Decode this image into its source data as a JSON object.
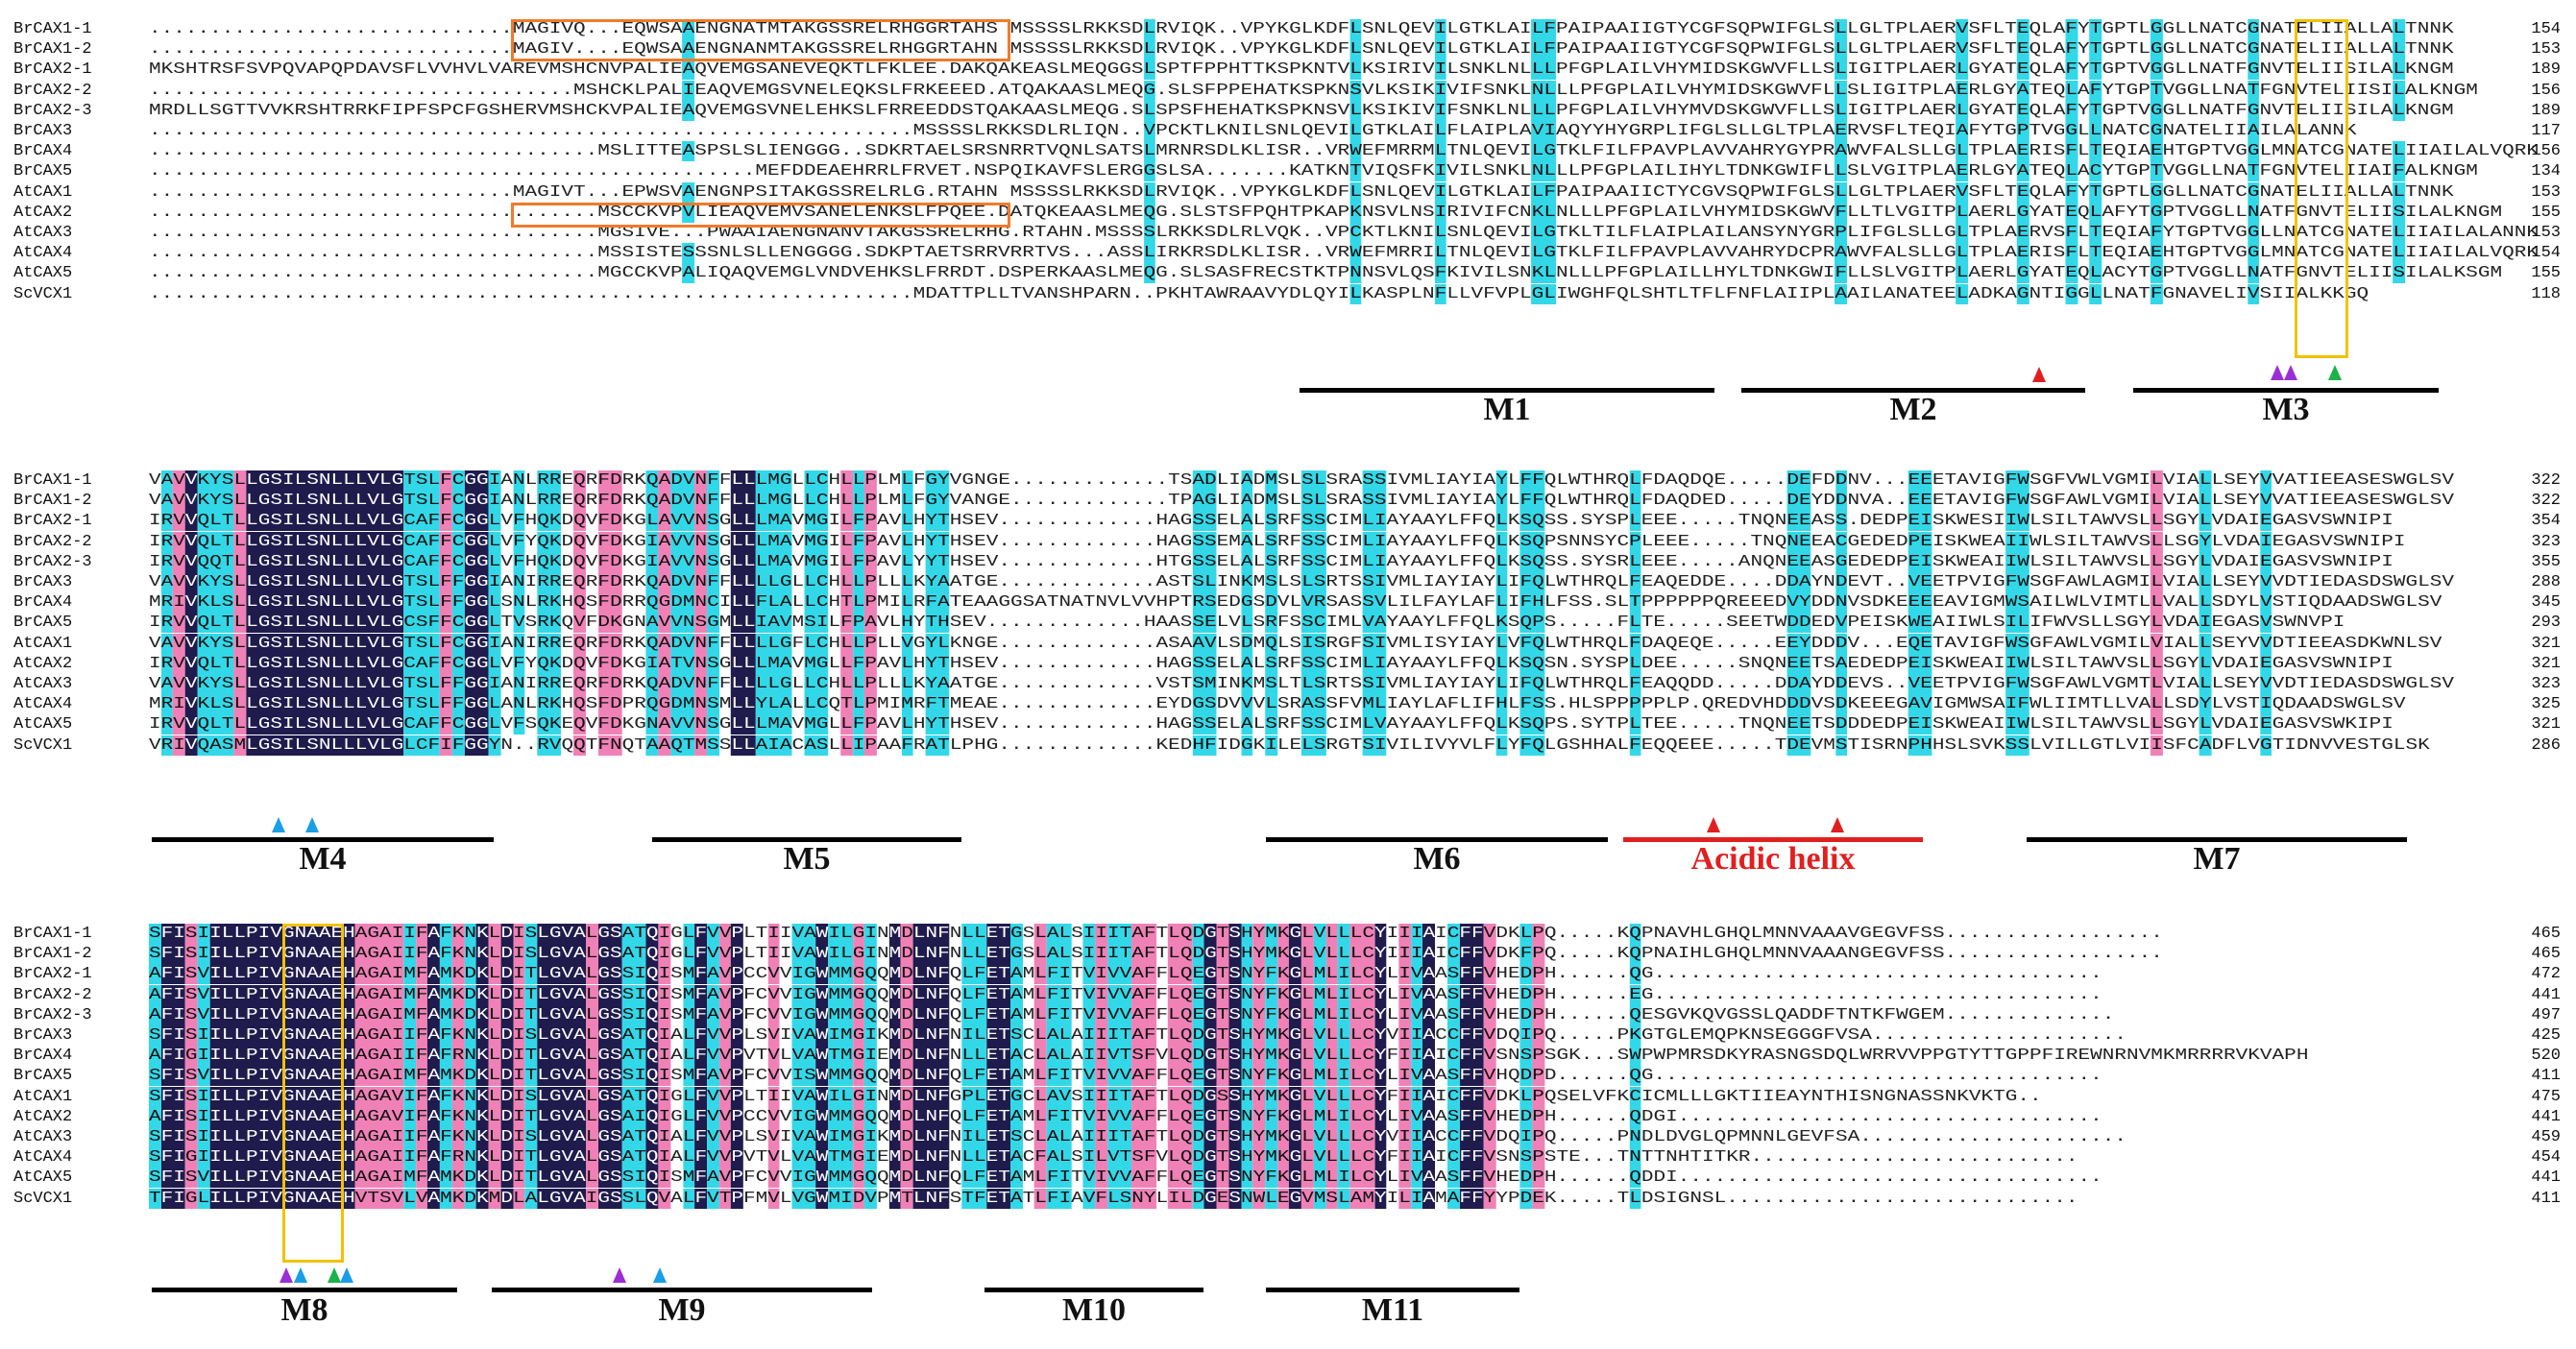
{
  "block1": {
    "rows": [
      {
        "name": "BrCAX1-1",
        "seq": "..............................MAGIVQ...EQWSAAENGNATMTAKGSSRELRHGGRTAHS MSSSSLRKKSDLRVIQK..VPYKGLKDFLSNLQEVILGTKLAILFPAIPAAIIGTYCGFSQPWIFGLSLLGLTPLAERVSFLTEQLAFYTGPTLGGLLNATCGNATELIIALLALTNNK",
        "end": "154"
      },
      {
        "name": "BrCAX1-2",
        "seq": "..............................MAGIV....EQWSAAENGNANMTAKGSSRELRHGGRTAHN MSSSSLRKKSDLRVIQK..VPYKGLKDFLSNLQEVILGTKLAILFPAIPAAIIGTYCGFSQPWIFGLSLLGLTPLAERVSFLTEQLAFYTGPTLGGLLNATCGNATELIIALLALTNNK",
        "end": "153"
      },
      {
        "name": "BrCAX2-1",
        "seq": "MKSHTRSFSVPQVAPQPDAVSFLVVHVLVAREVMSHCNVPALIEAQVEMGSANEVEQKTLFKLEE.DAKQAKEASLMEQGGSLSPTFPPHTTKSPKNTVLKSIRIVILSNKLNLLLPFGPLAILVHYMIDSKGWVFLLSLIGITPLAERLGYATEQLAFYTGPTVGGLLNATFGNVTELIISILALKNGM",
        "end": "189"
      },
      {
        "name": "BrCAX2-2",
        "seq": "...................................MSHCKLPALIEAQVEMGSVNELEQKSLFRKEEED.ATQAKAASLMEQG.SLSFPPEHATKSPKNSVLKSIKIVIFSNKLNLLLPFGPLAILVHYMIDSKGWVFLLSLIGITPLAERLGYATEQLAFYTGPTVGGLLNATFGNVTELIISILALKNGM",
        "end": "156"
      },
      {
        "name": "BrCAX2-3",
        "seq": "MRDLLSGTTVVKRSHTRRKFIPFSPCFGSHERVMSHCKVPALIEAQVEMGSVNELEHKSLFRREEDDSTQAKAASLMEQG.SLSPSFHEHATKSPKNSVLKSIKIVIFSNKLNLLLPFGPLAILVHYMVDSKGWVFLLSLIGITPLAERLGYATEQLAFYTGPTVGGLLNATFGNVTELIISILALKNGM",
        "end": "189"
      },
      {
        "name": "BrCAX3",
        "seq": "...............................................................MSSSSLRKKSDLRLIQN..VPCKTLKNILSNLQEVILGTKLAILFLAIPLAVIAQYYHYGRPLIFGLSLLGLTPLAERVSFLTEQIAFYTGPTVGGLLNATCGNATELIIAILALANNK",
        "end": "117"
      },
      {
        "name": "BrCAX4",
        "seq": ".....................................MSLITTEASPSLSLIENGGG..SDKRTAELSRSNRRTVQNLSATSLMRNRSDLKLISR..VRWEFMRRMLTNLQEVILGTKLFILFPAVPLAVVAHRYGYPRAWVFALSLLGLTPLAERISFLTEQIAEHTGPTVGGLMNATCGNATELIIAILALVQRK",
        "end": "156"
      },
      {
        "name": "BrCAX5",
        "seq": "..................................................MEFDDEAEHRRLFRVET.NSPQIKAVFSLERGGSLSA.......KATKNTVIQSFKIVILSNKLNLLLPFGPLAILIHYLTDNKGWIFLLSLVGITPLAERLGYATEQLACYTGPTVGGLLNATFGNVTELIIAIFALKNGM",
        "end": "134"
      },
      {
        "name": "AtCAX1",
        "seq": "..............................MAGIVT...EPWSVAENGNPSITAKGSSRELRLG.RTAHN MSSSSLRKKSDLRVIQK..VPYKGLKDFLSNLQEVILGTKLAILFPAIPAAIICTYCGVSQPWIFGLSLLGLTPLAERVSFLTEQLAFYTGPTLGGLLNATCGNATELIIALLALTNNK",
        "end": "153"
      },
      {
        "name": "AtCAX2",
        "seq": ".....................................MSCCKVPVLIEAQVEMVSANELENKSLFPQEE.DATQKEAASLMEQG.SLSTSFPQHTPKAPKNSVLNSIRIVIFCNKLNLLLPFGPLAILVHYMIDSKGWVFLLTLVGITPLAERLGYATEQLAFYTGPTVGGLLNATFGNVTELIISILALKNGM",
        "end": "155"
      },
      {
        "name": "AtCAX3",
        "seq": ".....................................MGSIVE...PWAAIAENGNANVTAKGSSRELRHG.RTAHN.MSSSSLRKKSDLRLVQK..VPCKTLKNILSNLQEVILGTKLTILFLAIPLAILANSYNYGRPLIFGLSLLGLTPLAERVSFLTEQIAFYTGPTVGGLLNATCGNATELIIAILALANNK",
        "end": "153"
      },
      {
        "name": "AtCAX4",
        "seq": ".....................................MSSISTESSSNLSLLENGGGG.SDKPTAETSRRVRRTVS...ASSLIRKRSDLKLISR..VRWEFMRRILTNLQEVILGTKLFILFPAVPLAVVAHRYDCPRAWVFALSLLGLTPLAERISFLTEQIAEHTGPTVGGLMNATCGNATELIIAILALVQRK",
        "end": "154"
      },
      {
        "name": "AtCAX5",
        "seq": ".....................................MGCCKVPALIQAQVEMGLVNDVEHKSLFRRDT.DSPERKAASLMEQG.SLSASFRECSTKTPNNSVLQSFKIVILSNKLNLLLPFGPLAILLHYLTDNKGWIFLLSLVGITPLAERLGYATEQLACYTGPTVGGLLNATFGNVTELIISILALKSGM",
        "end": "155"
      },
      {
        "name": "ScVCX1",
        "seq": "...............................................................MDATTPLLTVANSHPARN..PKHTAWRAAVYDLQYILKASPLNFLLVFVPLGLIWGHFQLSHTLTFLFNFLAIIPLAAILANATEELADKAGNTIGGLLNATFGNAVELIVSIIALKKGQ",
        "end": "118"
      }
    ]
  },
  "block2": {
    "rows": [
      {
        "name": "BrCAX1-1",
        "seq": "VAVVKYSLLGSILSNLLLVLGTSLFCGGIANLRREQRFDRKQADVNFFLLLMGLLCHLLPLMLFGYVGNGE.............TSADLIADMSLSLSRASSIVMLIAYIAYLFFQLWTHRQLFDAQDQE.....DEFDDNV...EEETAVIGFWSGFVWLVGMILVIALLSEYVVATIEEASESWGLSV",
        "end": "322"
      },
      {
        "name": "BrCAX1-2",
        "seq": "VAVVKYSLLGSILSNLLLVLGTSLFCGGIANLRREQRFDRKQADVNFFLLLMGLLCHLLPLMLFGYVANGE.............TPAGLIADMSLSLSRASSIVMLIAYIAYLFFQLWTHRQLFDAQDED.....DEYDDNVA..EEETAVIGFWSGFAWLVGMILVIALLSEYVVATIEEASESWGLSV",
        "end": "322"
      },
      {
        "name": "BrCAX2-1",
        "seq": "IRVVQLTLLGSILSNLLLVLGCAFFCGGLVFHQKDQVFDKGLAVVNSGLLLMAVMGILFPAVLHYTHSEV.............HAGSSELALSRFSSCIMLIAYAAYLFFQLKSQSS.SYSPLEEE.....TNQNEEASS.DEDPEISKWESIIWLSILTAWVSLLSGYLVDAIEGASVSWNIPI",
        "end": "354"
      },
      {
        "name": "BrCAX2-2",
        "seq": "IRVVQLTLLGSILSNLLLVLGCAFFCGGLVFYQKDQVFDKGIAVVNSGLLLMAVMGILFPAVLHYTHSEV.............HAGSSEMALSRFSSCIMLIAYAAYLFFQLKSQPSNNSYCPLEEE.....TNQNEEACGEDEDPEISKWEAIIWLSILTAWVSLLSGYLVDAIEGASVSWNIPI",
        "end": "323"
      },
      {
        "name": "BrCAX2-3",
        "seq": "IRVVQQTLLGSILSNLLLVLGCAFFCGGLVFHQKDQVFDKGIAVVNSGLLLMAVMGILFPAVLYYTHSEV.............HTGSSELALSRFSSCIMLIAYAAYLFFQLKSQSS.SYSRLEEE.....ANQNEEASGEDEDPEISKWEAIIWLSILTAWVSLLSGYLVDAIEGASVSWNIPI",
        "end": "355"
      },
      {
        "name": "BrCAX3",
        "seq": "VAVVKYSLLGSILSNLLLVLGTSLFFGGIANIRREQRFDRKQADVNFFLLLLGLLCHLLPLLLKYAATGE.............ASTSLINKMSLSLSRTSSIVMLIAYIAYLIFQLWTHRQLFEAQEDDE....DDAYNDEVT..VEETPVIGFWSGFAWLAGMILVIALLSEYVVDTIEDASDSWGLSV",
        "end": "288"
      },
      {
        "name": "BrCAX4",
        "seq": "MRIVKLSLLGSILSNLLLVLGTSLFFGGLSNLRKHQSFDRRQGDMNCILLFLALLCHTLPMILRFATEAAGGSATNATNVLVVHPTRSEDGSDVLVRSASSVLILFAYLAFLIFHLFSS.SLTPPPPPPQREEEDVYDDNVSDKEEEEAVIGMWSAILWLVIMTLLVALLSDYLVSTIQDAADSWGLSV",
        "end": "345"
      },
      {
        "name": "BrCAX5",
        "seq": "IRVVQLTLLGSILSNLLLVLGCSFFCGGLTVSRKQVFDKGNAVVNSGMLLIAVMSILFPAVLHYTHSEV.............HAASSELVLSRFSSCIMLVAYAAYLFFQLKSQPS.....FLTE.....SEETWDDEDVPEISKWEAIIWLSILIFWVSLLSGYLVDAIEGASVSWNVPI",
        "end": "293"
      },
      {
        "name": "AtCAX1",
        "seq": "VAVVKYSLLGSILSNLLLVLGTSLFCGGIANIRREQRFDRKQADVNFFLLLLGFLCHLLPLLVGYLKNGE.............ASAAVLSDMQLSISRGFSIVMLISYIAYLVFQLWTHRQLFDAQEQE.....EEYDDDV...EQETAVIGFWSGFAWLVGMILVIALLSEYVVDTIEEASDKWNLSV",
        "end": "321"
      },
      {
        "name": "AtCAX2",
        "seq": "IRVVQLTLLGSILSNLLLVLGCAFFCGGLVFYQKDQVFDKGIATVNSGLLLMAVMGLLFPAVLHYTHSEV.............HAGSSELALSRFSSCIMLIAYAAYLFFQLKSQSN.SYSPLDEE.....SNQNEETSAEDEDPEISKWEAIIWLSILTAWVSLLSGYLVDAIEGASVSWNIPI",
        "end": "321"
      },
      {
        "name": "AtCAX3",
        "seq": "VAVVKYSLLGSILSNLLLVLGTSLFFGGIANIRREQRFDRKQADVNFFLLLLGLLCHLLPLLLKYAATGE.............VSTSMINKMSLTLSRTSSIVMLIAYIAYLIFQLWTHRQLFEAQQDD.....DDAYDDEVS..VEETPVIGFWSGFAWLVGMTLVIALLSEYVVDTIEDASDSWGLSV",
        "end": "323"
      },
      {
        "name": "AtCAX4",
        "seq": "MRIVKLSLLGSILSNLLLVLGTSLFFGGLANLRKHQSFDPRQGDMNSMLLYLALLCQTLPMIMRFTMEAE.............EYDGSDVVVLSRASSFVMLIAYLAFLIFHLFSS.HLSPPPPPLP.QREDVHDDDVSDKEEEGAVIGMWSAIFWLIIMTLLVALLSDYLVSTIQDAADSWGLSV",
        "end": "325"
      },
      {
        "name": "AtCAX5",
        "seq": "IRVVQLTLLGSILSNLLLVLGCAFFCGGLVFSQKEQVFDKGNAVVNSGLLLMAVMGLLFPAVLHYTHSEV.............HAGSSELALSRFSSCIMLVAYAAYLFFQLKSQPS.SYTPLTEE.....TNQNEETSDDDEDPEISKWEAIIWLSILTAWVSLLSGYLVDAIEGASVSWKIPI",
        "end": "321"
      },
      {
        "name": "ScVCX1",
        "seq": "VRIVQASMLGSILSNLLLVLGLCFIFGGYN..RVQQTFNQTAAQTMSSLLAIACASLLIPAAFRATLPHG.............KEDHFIDGKILELSRGTSIVILIVYVLFLYFQLGSHHALFEQQEEE.....TDEVMSTISRNPHHSLSVKSSLVILLGTLVIISFCADFLVGTIDNVVESTGLSK",
        "end": "286"
      }
    ]
  },
  "block3": {
    "rows": [
      {
        "name": "BrCAX1-1",
        "seq": "SFISIILLPIVGNAAEHAGAIIFAFKNKLDISLGVALGSATQIGLFVVPLTIIVAWILGINMDLNFNLLETGSLALSIIITAFTLQDGTSHYMKGLVLLLCYIIIAICFFVDKLPQ.....KQPNAVHLGHQLMNNVAAAVGEGVFSS..................",
        "end": "465"
      },
      {
        "name": "BrCAX1-2",
        "seq": "SFISIILLPIVGNAAEHAGAIIFAFKNKLDISLGVALGSATQIGLFVVPLTIIVAWILGINMDLNFNLLETGSLALSIIITAFTLQDGTSHYMKGLVLLLCYIIIAICFFVDKFPQ.....KQPNAIHLGHQLMNNVAAANGEGVFSS..................",
        "end": "465"
      },
      {
        "name": "BrCAX2-1",
        "seq": "AFISVILLPIVGNAAEHAGAIMFAMKDKLDITLGVALGSSIQISMFAVPCCVVIGWMMGQQMDLNFQLFETAMLFITVIVVAFFLQEGTSNYFKGLMLILCYLIVAASFFVHEDPH......QG.....................................",
        "end": "472"
      },
      {
        "name": "BrCAX2-2",
        "seq": "AFISVILLPIVGNAAEHAGAIMFAMKDKLDITLGVALGSSIQISMFAVPFCVVIGWMMGQQMDLNFQLFETAMLFITVIVVAFFLQEGTSNYFKGLMLILCYLIVAASFFVHEDPH......EG.....................................",
        "end": "441"
      },
      {
        "name": "BrCAX2-3",
        "seq": "AFISVILLPIVGNAAEHAGAIMFAMKDKLDITLGVALGSSIQISMFAVPFCVVIGWMMGQQMDLNFQLFETAMLFITVIVVAFFLQEGTSNYFKGLMLILCYLIVAASFFVHEDPH......QESGVKQVGSSLQADDFTNTKFWGEM..............",
        "end": "497"
      },
      {
        "name": "BrCAX3",
        "seq": "SFISIILLPIVGNAAEHAGAIIFAFKNKLDISLGVALGSATQIALFVVPLSVIVAWIMGIKMDLNFNILETSCLALAIIITAFTLQDGTSHYMKGLVLLLCYVIIACCFFVDQIPQ.....PKGTGLEMQPKNSEGGGFVSA.....................",
        "end": "425"
      },
      {
        "name": "BrCAX4",
        "seq": "AFIGIILLPIVGNAAEHAGAIIFAFRNKLDITLGVALGSATQIALFVVPVTVLVAWTMGIEMDLNFNLLETACLALAIIVTSFVLQDGTSHYMKGLVLLLCYFIIAICFFVSNSPSGK...SWPWPMRSDKYRASNGSDQLWRRVVPPGTYTTGPPFIREWNRNVMKMRRRRVKVAPH",
        "end": "520"
      },
      {
        "name": "BrCAX5",
        "seq": "SFISVILLPIVGNAAEHAGAIMFAMKDKLDITLGVALGSSIQISMFAVPFCVVISWMMGQQMDLNFQLFETAMLFITVIVVAFFLQEGTSNYFKGLMLILCYLIVAASFFVHQDPD......QG.....................................",
        "end": "411"
      },
      {
        "name": "AtCAX1",
        "seq": "SFISIILLPIVGNAAEHAGAVIFAFKNKLDISLGVALGSATQIGLFVVPLTIIVAWILGINMDLNFGPLETGCLAVSIIITAFTLQDGSSHYMKGLVLLLCYFIIAICFFVDKLPQSELVFKCICMLLLGKTIIEAYNTHISNGNASSNKVKTG..",
        "end": "475"
      },
      {
        "name": "AtCAX2",
        "seq": "AFISIILLPIVGNAAEHAGAVIFAFKNKLDITLGVALGSAIQIGLFVVPCCVVIGWMMGQQMDLNFQLFETAMLFITVIVVAFFLQEGTSNYFKGLMLILCYLIVAASFFVHEDPH......QDGI...................................",
        "end": "441"
      },
      {
        "name": "AtCAX3",
        "seq": "SFISIILLPIVGNAAEHAGAIIFAFKNKLDISLGVALGSATQIALFVVPLSVIVAWIMGIKMDLNFNILETSCLALAIIITAFTLQDGTSHYMKGLVLLLCYVIIACCFFVDQIPQ.....PNDLDVGLQPMNNLGEVFSA......................",
        "end": "459"
      },
      {
        "name": "AtCAX4",
        "seq": "SFIGIILLPIVGNAAEHAGAIIFAFRNKLDITLGVALGSATQIALFVVPVTVLVAWTMGIEMDLNFNLLETACFALSILVTSFVLQDGTSHYMKGLVLLLCYFIIAICFFVSNSPSTE...TNTTNHTITKR...........................",
        "end": "454"
      },
      {
        "name": "AtCAX5",
        "seq": "SFISVILLPIVGNAAEHAGAIMFAMKDKLDITLGVALGSSIQISMFAVPFCVVIGWMMGQQMDLNFQLFETAMLFITVIVVAFFLQEGTSNYFKGLMLILCYLIVAASFFVHEDPH......QDDI...................................",
        "end": "441"
      },
      {
        "name": "ScVCX1",
        "seq": "TFIGLILLPIVGNAAEHVTSVLVAMKDKMDLALGVAIGSSLQVALFVTPFMVLVGWMIDVPMTLNFSTFETATLFIAVFLSNYLILDGESNWLEGVMSLAMYILIAMAFFYYPDEK.....TLDSIGNSL.............................",
        "end": "411"
      }
    ]
  },
  "segments": [
    {
      "label": "M1"
    },
    {
      "label": "M2"
    },
    {
      "label": "M3"
    },
    {
      "label": "M4"
    },
    {
      "label": "M5"
    },
    {
      "label": "M6"
    },
    {
      "label": "Acidic helix"
    },
    {
      "label": "M7"
    },
    {
      "label": "M8"
    },
    {
      "label": "M9"
    },
    {
      "label": "M10"
    },
    {
      "label": "M11"
    }
  ],
  "colors": {
    "dark": "#1f1b4d",
    "pink": "#f081b6",
    "cyan": "#33d8e8",
    "orange": "#f07b2a",
    "yellow": "#f2c200",
    "red": "#e02020",
    "purple": "#9b2fd6",
    "blue": "#1a9ee6",
    "green": "#1bb24a"
  },
  "marker_icons": [
    "red-triangle-icon",
    "purple-triangle-icon",
    "blue-triangle-icon",
    "green-triangle-icon"
  ]
}
